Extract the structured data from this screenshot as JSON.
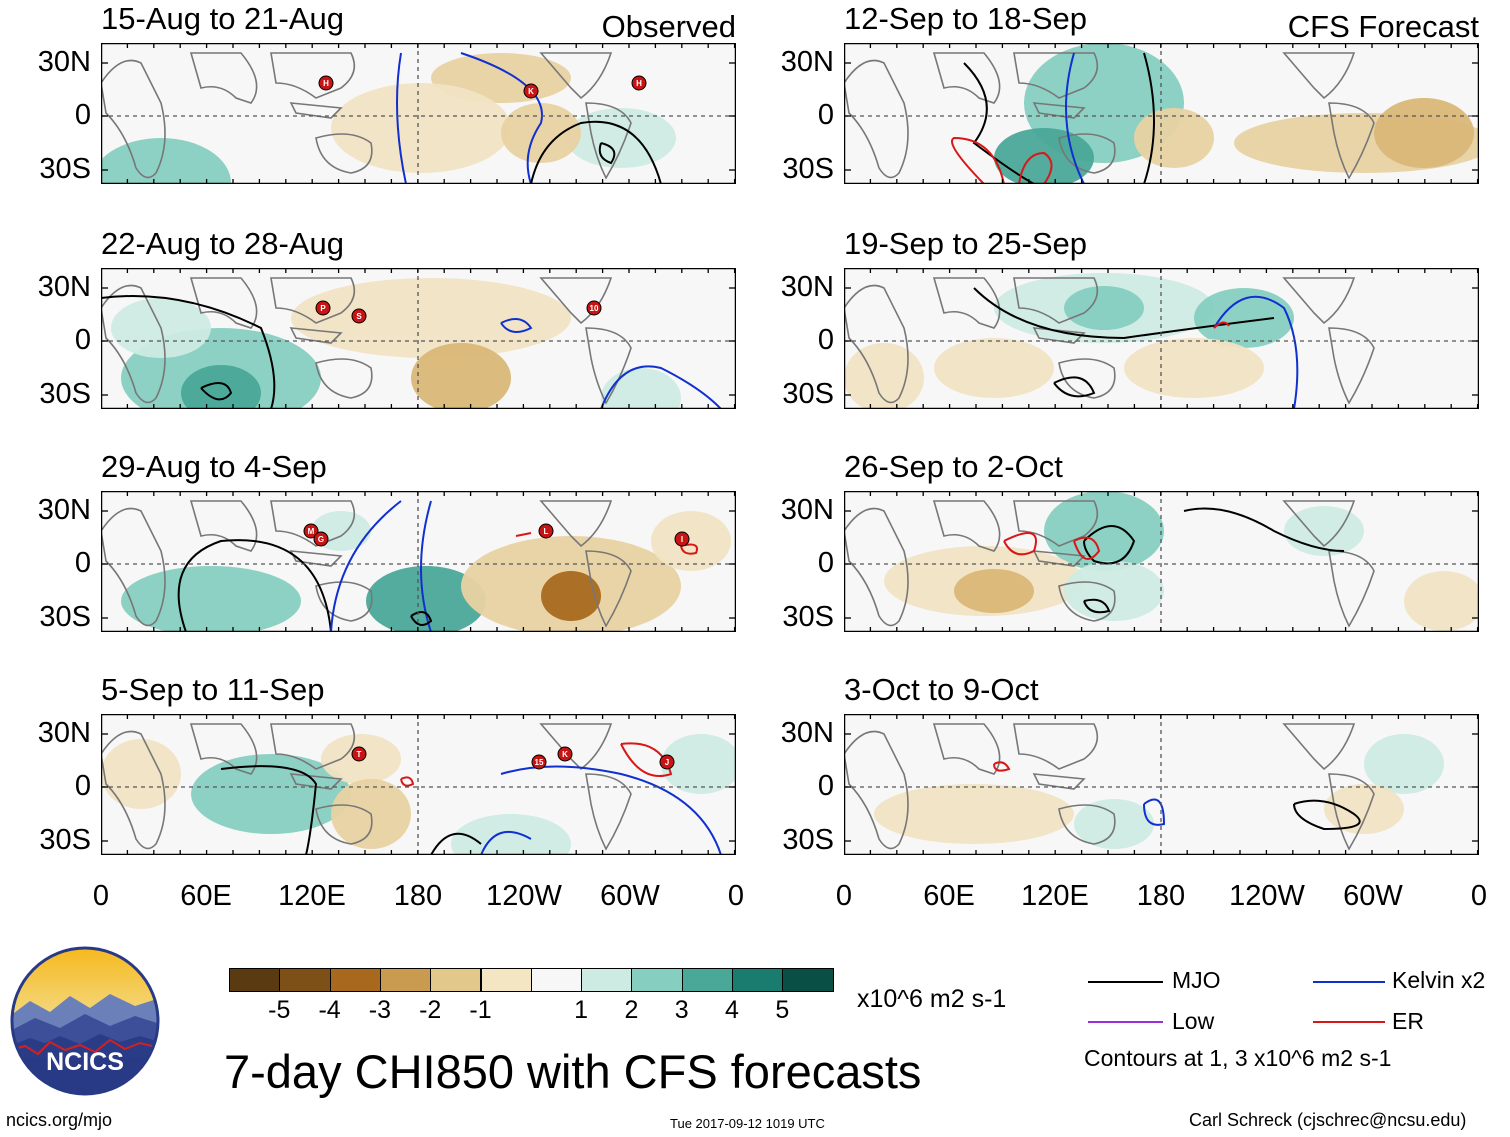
{
  "header": {
    "observed_label": "Observed",
    "forecast_label": "CFS Forecast"
  },
  "panels": [
    {
      "title": "15-Aug to 21-Aug",
      "column": "observed",
      "storms": [
        "H",
        "K",
        "H"
      ]
    },
    {
      "title": "22-Aug to 28-Aug",
      "column": "observed",
      "storms": [
        "P",
        "S",
        "10"
      ]
    },
    {
      "title": "29-Aug to 4-Sep",
      "column": "observed",
      "storms": [
        "M",
        "G",
        "L",
        "I"
      ]
    },
    {
      "title": "5-Sep to 11-Sep",
      "column": "observed",
      "storms": [
        "T",
        "15",
        "K",
        "J"
      ]
    },
    {
      "title": "12-Sep to 18-Sep",
      "column": "forecast",
      "storms": []
    },
    {
      "title": "19-Sep to 25-Sep",
      "column": "forecast",
      "storms": []
    },
    {
      "title": "26-Sep to 2-Oct",
      "column": "forecast",
      "storms": []
    },
    {
      "title": "3-Oct to 9-Oct",
      "column": "forecast",
      "storms": []
    }
  ],
  "axes": {
    "lat_labels": [
      "30N",
      "0",
      "30S"
    ],
    "lon_labels": [
      "0",
      "60E",
      "120E",
      "180",
      "120W",
      "60W",
      "0"
    ]
  },
  "colorbar": {
    "ticks": [
      "-5",
      "-4",
      "-3",
      "-2",
      "-1",
      "1",
      "2",
      "3",
      "4",
      "5"
    ],
    "colors": [
      "#5a3a10",
      "#7d5018",
      "#a8691e",
      "#c99b50",
      "#e2c98b",
      "#f4e6c3",
      "#f7f7f7",
      "#cdebe3",
      "#86cfc0",
      "#4aa898",
      "#1a7c6e",
      "#0a4f45"
    ],
    "units": "x10^6 m2 s-1"
  },
  "legend": {
    "items": [
      {
        "label": "MJO",
        "color": "#000000"
      },
      {
        "label": "Kelvin x2",
        "color": "#1030d0"
      },
      {
        "label": "Low",
        "color": "#9a30d8"
      },
      {
        "label": "ER",
        "color": "#d81818"
      }
    ],
    "contours_note": "Contours at 1, 3 x10^6 m2 s-1"
  },
  "footer": {
    "main_title": "7-day CHI850 with CFS forecasts",
    "logo_text": "NCICS",
    "url": "ncics.org/mjo",
    "timestamp": "Tue 2017-09-12 1019 UTC",
    "author": "Carl Schreck (cjschrec@ncsu.edu)"
  }
}
